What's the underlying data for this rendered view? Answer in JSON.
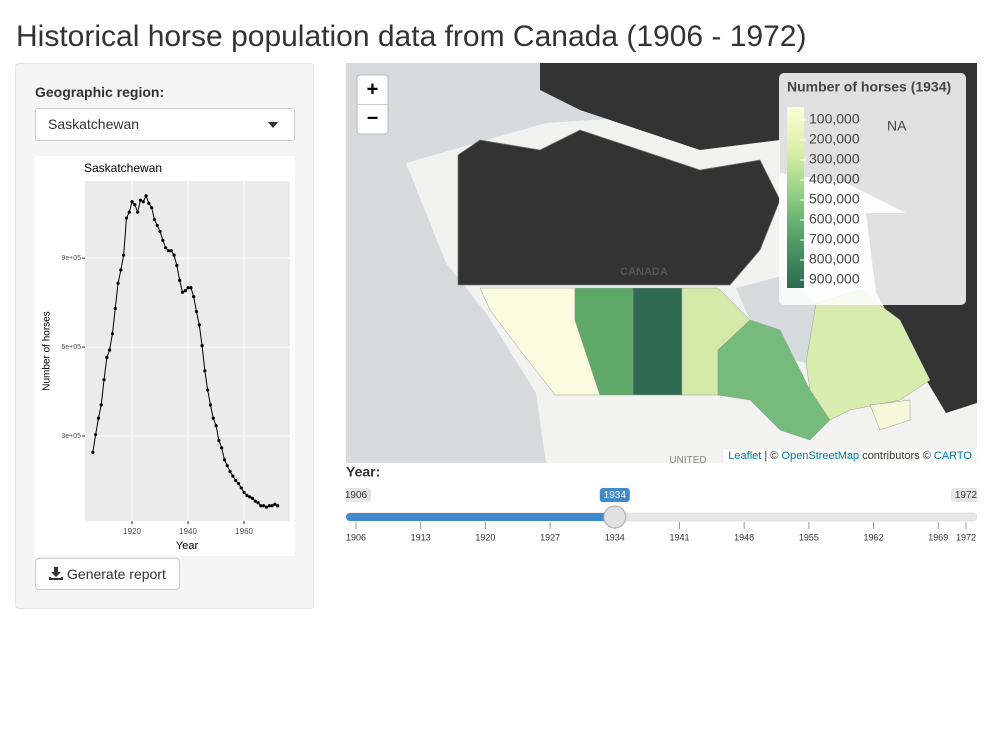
{
  "header": {
    "title": "Historical horse population data from Canada (1906 - 1972)"
  },
  "sidebar": {
    "region_label": "Geographic region:",
    "region_selected": "Saskatchewan",
    "report_button": "Generate report"
  },
  "chart_data": {
    "type": "line",
    "title": "Saskatchewan",
    "x_label": "Year",
    "y_label": "Number of horses",
    "x": [
      1906,
      1907,
      1908,
      1909,
      1910,
      1911,
      1912,
      1913,
      1914,
      1915,
      1916,
      1917,
      1918,
      1919,
      1920,
      1921,
      1922,
      1923,
      1924,
      1925,
      1926,
      1927,
      1928,
      1929,
      1930,
      1931,
      1932,
      1933,
      1934,
      1935,
      1936,
      1937,
      1938,
      1939,
      1940,
      1941,
      1942,
      1943,
      1944,
      1945,
      1946,
      1947,
      1948,
      1949,
      1950,
      1951,
      1952,
      1953,
      1954,
      1955,
      1956,
      1957,
      1958,
      1959,
      1960,
      1961,
      1962,
      1963,
      1964,
      1965,
      1966,
      1967,
      1968,
      1969,
      1970,
      1971,
      1972
    ],
    "values": [
      245000,
      305000,
      360000,
      405000,
      490000,
      565000,
      590000,
      645000,
      730000,
      815000,
      860000,
      910000,
      1035000,
      1055000,
      1090000,
      1080000,
      1055000,
      1095000,
      1090000,
      1110000,
      1085000,
      1070000,
      1030000,
      1010000,
      990000,
      960000,
      935000,
      925000,
      925000,
      910000,
      875000,
      825000,
      785000,
      790000,
      800000,
      800000,
      770000,
      720000,
      675000,
      605000,
      520000,
      455000,
      405000,
      360000,
      335000,
      285000,
      260000,
      220000,
      200000,
      180000,
      165000,
      150000,
      140000,
      125000,
      110000,
      100000,
      95000,
      90000,
      80000,
      75000,
      65000,
      65000,
      60000,
      65000,
      65000,
      70000,
      65000
    ],
    "color": "#000000",
    "background": "#ebebeb",
    "grid": true,
    "xlim": [
      1903.2,
      1976.4
    ],
    "xticks": [
      1920,
      1940,
      1960
    ],
    "ylim": [
      13500,
      1160000
    ],
    "yticks": [
      {
        "value": 300000,
        "label": "3e+05"
      },
      {
        "value": 600000,
        "label": "6e+05"
      },
      {
        "value": 900000,
        "label": "9e+05"
      }
    ]
  },
  "map": {
    "zoom_in": "+",
    "zoom_out": "−",
    "legend_title": "Number of horses (1934)",
    "legend_labels": [
      "100,000",
      "200,000",
      "300,000",
      "400,000",
      "500,000",
      "600,000",
      "700,000",
      "800,000",
      "900,000"
    ],
    "legend_colors": [
      "#fbfdd6",
      "#d9efa5",
      "#8ccb82",
      "#4e9a64",
      "#2c6a50"
    ],
    "na_label": "NA",
    "place_labels": [
      "CANADA",
      "UNITED"
    ],
    "attribution": [
      "Leaflet",
      "| ©",
      "OpenStreetMap",
      "contributors ©",
      "CARTO"
    ]
  },
  "slider": {
    "label": "Year:",
    "min": 1906,
    "max": 1972,
    "value": 1934,
    "color": "#428bca",
    "ticks": [
      1906,
      1913,
      1920,
      1927,
      1934,
      1941,
      1948,
      1955,
      1962,
      1969,
      1972
    ]
  }
}
